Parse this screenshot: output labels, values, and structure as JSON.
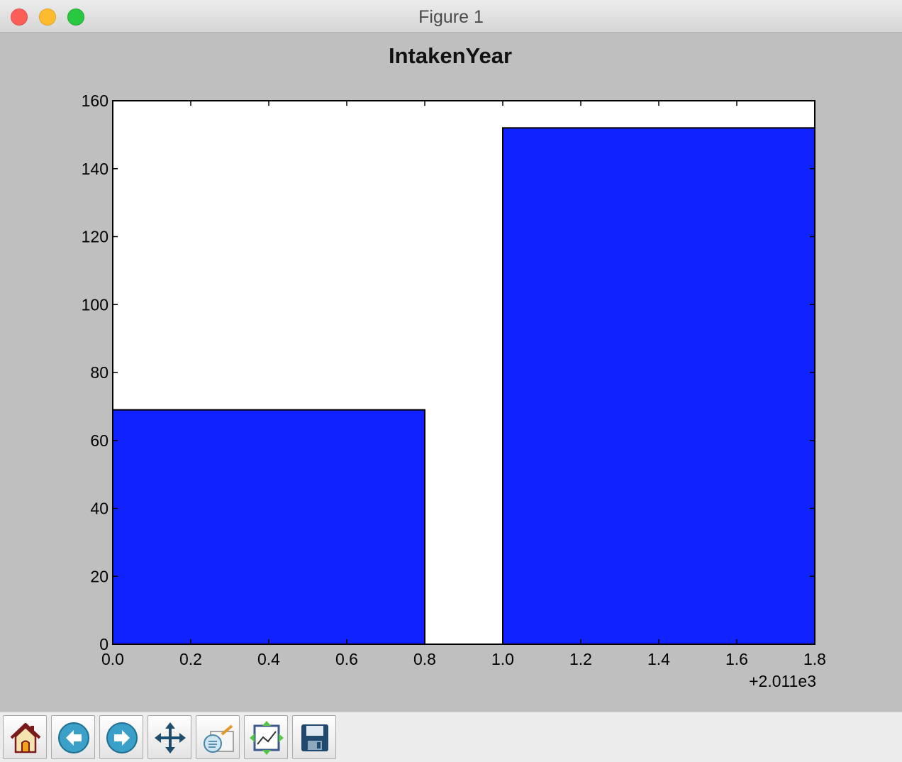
{
  "window": {
    "title": "Figure 1"
  },
  "chart_data": {
    "type": "bar",
    "title": "IntakenYear",
    "xlabel": "",
    "ylabel": "",
    "x_offset_label": "+2.011e3",
    "bars": [
      {
        "x_start": 0.0,
        "x_end": 0.8,
        "value": 69
      },
      {
        "x_start": 1.0,
        "x_end": 1.8,
        "value": 152
      }
    ],
    "xlim": [
      0.0,
      1.8
    ],
    "ylim": [
      0,
      160
    ],
    "xticks": [
      "0.0",
      "0.2",
      "0.4",
      "0.6",
      "0.8",
      "1.0",
      "1.2",
      "1.4",
      "1.6",
      "1.8"
    ],
    "yticks": [
      "0",
      "20",
      "40",
      "60",
      "80",
      "100",
      "120",
      "140",
      "160"
    ],
    "bar_color": "#0f22ff",
    "grid": false,
    "legend": "none"
  },
  "toolbar": {
    "buttons": [
      {
        "name": "home-button",
        "icon": "home-icon"
      },
      {
        "name": "back-button",
        "icon": "back-arrow-icon"
      },
      {
        "name": "forward-button",
        "icon": "forward-arrow-icon"
      },
      {
        "name": "pan-button",
        "icon": "move-icon"
      },
      {
        "name": "zoom-button",
        "icon": "zoom-rect-icon"
      },
      {
        "name": "subplots-button",
        "icon": "subplots-icon"
      },
      {
        "name": "save-button",
        "icon": "save-icon"
      }
    ]
  }
}
